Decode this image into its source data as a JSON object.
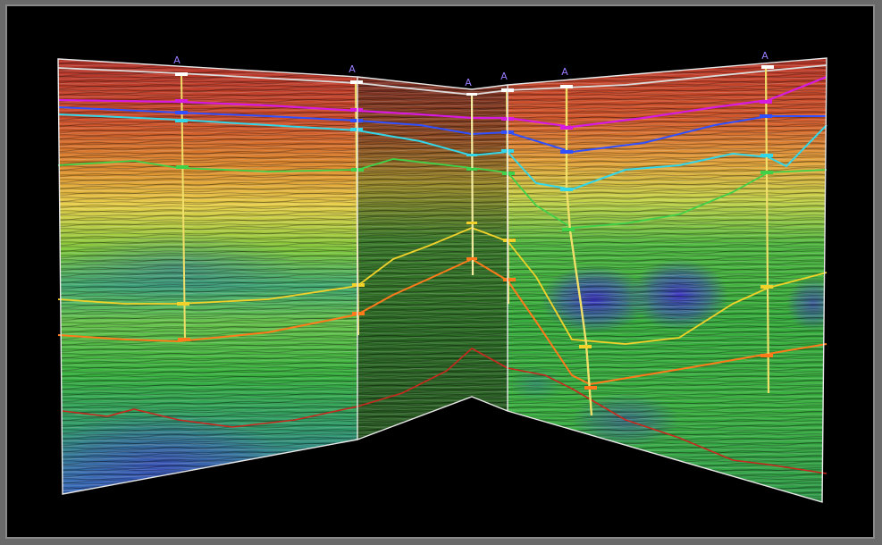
{
  "scene": {
    "background": "#000000",
    "frame_color": "#8a8a8a",
    "panel_edge_color": "#e8e8e8",
    "color_ramp": [
      "#b83228",
      "#d95a2a",
      "#e6a43a",
      "#e8d84a",
      "#7ec83a",
      "#2fa34a",
      "#2a7a70",
      "#3a55c8"
    ],
    "horizon_colors": {
      "white": "#dcdcdc",
      "magenta": "#d51be0",
      "blue": "#3050ff",
      "cyan": "#33d6e8",
      "green": "#3fd14a",
      "yellow": "#f2d12a",
      "orange": "#ff7a1a",
      "red": "#c8281e"
    }
  },
  "wells": [
    {
      "label": "A",
      "icon": "well-marker-icon"
    },
    {
      "label": "A",
      "icon": "well-marker-icon"
    },
    {
      "label": "A",
      "icon": "well-marker-icon"
    },
    {
      "label": "A",
      "icon": "well-marker-icon"
    },
    {
      "label": "A",
      "icon": "well-marker-icon"
    },
    {
      "label": "A",
      "icon": "well-marker-icon"
    }
  ]
}
